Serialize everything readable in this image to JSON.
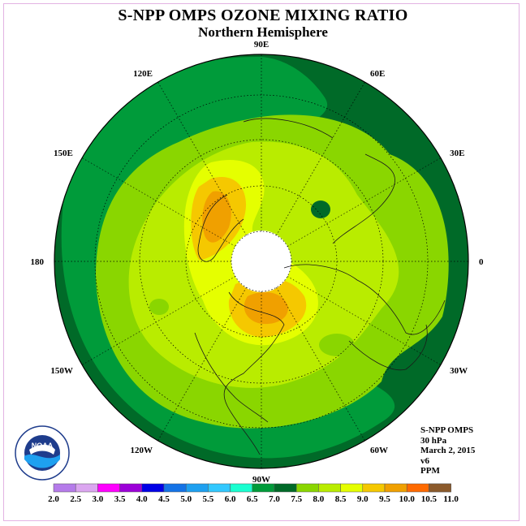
{
  "title": "S-NPP OMPS OZONE MIXING RATIO",
  "subtitle": "Northern Hemisphere",
  "longitude_labels": [
    {
      "text": "90E",
      "deg": 90
    },
    {
      "text": "60E",
      "deg": 60
    },
    {
      "text": "30E",
      "deg": 30
    },
    {
      "text": "0",
      "deg": 0
    },
    {
      "text": "30W",
      "deg": -30
    },
    {
      "text": "60W",
      "deg": -60
    },
    {
      "text": "90W",
      "deg": -90
    },
    {
      "text": "120W",
      "deg": -120
    },
    {
      "text": "150W",
      "deg": -150
    },
    {
      "text": "180",
      "deg": 180
    },
    {
      "text": "150E",
      "deg": 150
    },
    {
      "text": "120E",
      "deg": 120
    }
  ],
  "info": {
    "instrument": "S-NPP OMPS",
    "level": "30 hPa",
    "date": "March 2, 2015",
    "version": "v6",
    "units": "PPM"
  },
  "colorbar": {
    "labels": [
      "2.0",
      "2.5",
      "3.0",
      "3.5",
      "4.0",
      "4.5",
      "5.0",
      "5.5",
      "6.0",
      "6.5",
      "7.0",
      "7.5",
      "8.0",
      "8.5",
      "9.0",
      "9.5",
      "10.0",
      "10.5",
      "11.0"
    ],
    "colors": [
      "#b57bea",
      "#dba6f0",
      "#ff00ff",
      "#9c00d8",
      "#0000e6",
      "#1473e6",
      "#1ea0f0",
      "#32c8ff",
      "#1affd0",
      "#009b3a",
      "#006a28",
      "#8ad600",
      "#b9ec00",
      "#e5ff00",
      "#f5c800",
      "#f0a000",
      "#ff6a00",
      "#ff0000",
      "#8b5a2b"
    ]
  },
  "logo_text": "NOAA"
}
